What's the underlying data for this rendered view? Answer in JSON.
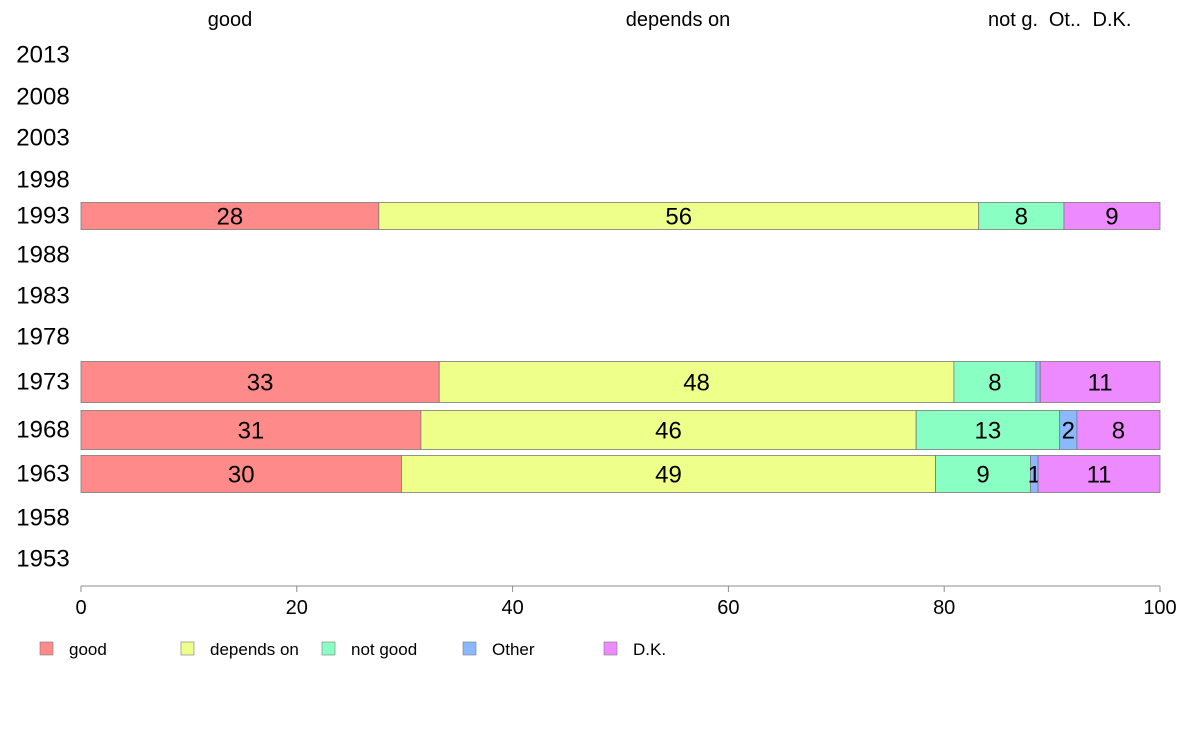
{
  "chart_data": {
    "type": "bar",
    "orientation": "horizontal",
    "stacked": true,
    "top_labels": [
      "good",
      "depends on",
      "not g.",
      "Ot..",
      "D.K."
    ],
    "categories": [
      "1953",
      "1958",
      "1963",
      "1968",
      "1973",
      "1978",
      "1983",
      "1988",
      "1993",
      "1998",
      "2003",
      "2008",
      "2013"
    ],
    "series": [
      {
        "name": "good",
        "color": "#FF8A8A",
        "values": [
          null,
          null,
          29.7,
          31.5,
          33.2,
          null,
          null,
          null,
          27.6,
          null,
          null,
          null,
          null
        ]
      },
      {
        "name": "depends on",
        "color": "#EEFF8A",
        "values": [
          null,
          null,
          49.5,
          45.9,
          47.7,
          null,
          null,
          null,
          55.6,
          null,
          null,
          null,
          null
        ]
      },
      {
        "name": "not good",
        "color": "#8AFFC4",
        "values": [
          null,
          null,
          8.8,
          13.3,
          7.6,
          null,
          null,
          null,
          7.9,
          null,
          null,
          null,
          null
        ]
      },
      {
        "name": "Other",
        "color": "#8AB9FF",
        "values": [
          null,
          null,
          0.7,
          1.6,
          0.4,
          null,
          null,
          null,
          0.0,
          null,
          null,
          null,
          null
        ]
      },
      {
        "name": "D.K.",
        "color": "#EE8AFF",
        "values": [
          null,
          null,
          11.3,
          7.7,
          11.1,
          null,
          null,
          null,
          8.9,
          null,
          null,
          null,
          null
        ]
      }
    ],
    "data_labels": {
      "1963": [
        "30",
        "49",
        "9",
        "1",
        "11"
      ],
      "1968": [
        "31",
        "46",
        "13",
        "2",
        "8"
      ],
      "1973": [
        "33",
        "48",
        "8",
        "",
        "11"
      ],
      "1993": [
        "28",
        "56",
        "8",
        "",
        "9"
      ]
    },
    "x_ticks": [
      "0",
      "20",
      "40",
      "60",
      "80",
      "100"
    ],
    "xlim": [
      0,
      100
    ],
    "legend": {
      "placement": "bottom-left",
      "items": [
        "good",
        "depends on",
        "not good",
        "Other",
        "D.K."
      ]
    },
    "grid": false
  }
}
